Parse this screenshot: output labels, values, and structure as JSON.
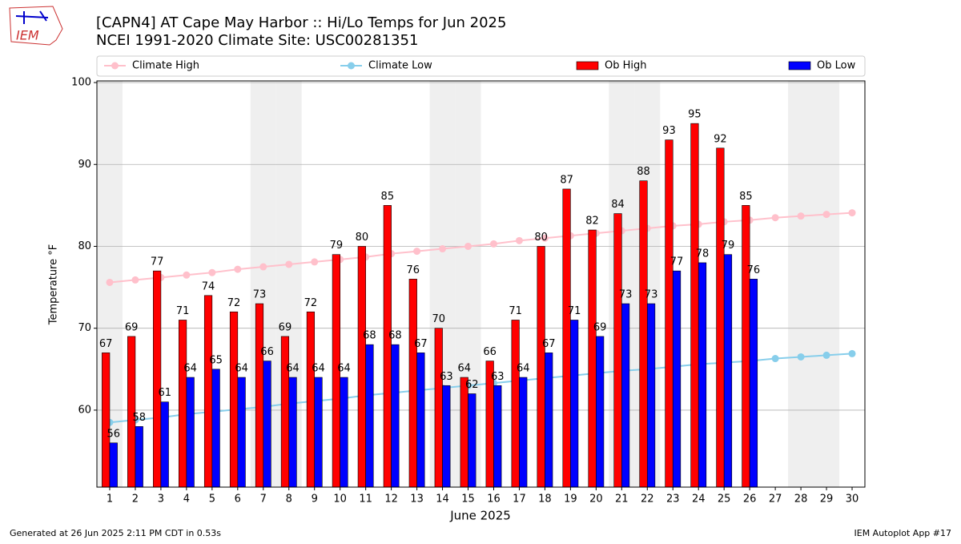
{
  "logo_text": "IEM",
  "footer_left": "Generated at 26 Jun 2025 2:11 PM CDT in 0.53s",
  "footer_right": "IEM Autoplot App #17",
  "chart_data": {
    "type": "bar",
    "title": "[CAPN4] AT Cape May Harbor :: Hi/Lo Temps for Jun 2025",
    "subtitle": "NCEI 1991-2020 Climate Site: USC00281351",
    "xlabel": "June 2025",
    "ylabel": "Temperature °F",
    "x": [
      1,
      2,
      3,
      4,
      5,
      6,
      7,
      8,
      9,
      10,
      11,
      12,
      13,
      14,
      15,
      16,
      17,
      18,
      19,
      20,
      21,
      22,
      23,
      24,
      25,
      26,
      27,
      28,
      29,
      30
    ],
    "xlim": [
      0.5,
      30.5
    ],
    "xticks": [
      1,
      2,
      3,
      4,
      5,
      6,
      7,
      8,
      9,
      10,
      11,
      12,
      13,
      14,
      15,
      16,
      17,
      18,
      19,
      20,
      21,
      22,
      23,
      24,
      25,
      26,
      27,
      28,
      29,
      30
    ],
    "ylim": [
      50.6,
      100.2
    ],
    "yticks": [
      60,
      70,
      80,
      90,
      100
    ],
    "grid": true,
    "shaded_days": [
      1,
      7,
      8,
      14,
      15,
      21,
      22,
      28,
      29
    ],
    "shade_color": "#efefef",
    "legend": "top",
    "series": [
      {
        "name": "Climate High",
        "style": "line",
        "color": "#ffc0cb",
        "values": [
          75.6,
          75.9,
          76.2,
          76.5,
          76.8,
          77.2,
          77.5,
          77.8,
          78.1,
          78.4,
          78.7,
          79.1,
          79.4,
          79.7,
          80.0,
          80.3,
          80.7,
          81.0,
          81.3,
          81.6,
          81.9,
          82.2,
          82.5,
          82.7,
          83.0,
          83.2,
          83.5,
          83.7,
          83.9,
          84.1
        ]
      },
      {
        "name": "Climate Low",
        "style": "line",
        "color": "#87ceeb",
        "values": [
          58.5,
          58.8,
          59.1,
          59.5,
          59.8,
          60.1,
          60.4,
          60.8,
          61.1,
          61.4,
          61.8,
          62.1,
          62.4,
          62.7,
          63.0,
          63.3,
          63.6,
          63.9,
          64.2,
          64.5,
          64.8,
          65.0,
          65.3,
          65.6,
          65.8,
          66.0,
          66.3,
          66.5,
          66.7,
          66.9
        ]
      },
      {
        "name": "Ob High",
        "style": "bar",
        "color": "#ff0000",
        "values": [
          67,
          69,
          77,
          71,
          74,
          72,
          73,
          69,
          72,
          79,
          80,
          85,
          76,
          70,
          64,
          66,
          71,
          80,
          87,
          82,
          84,
          88,
          93,
          95,
          92,
          85,
          null,
          null,
          null,
          null
        ]
      },
      {
        "name": "Ob Low",
        "style": "bar",
        "color": "#0000ff",
        "values": [
          56,
          58,
          61,
          64,
          65,
          64,
          66,
          64,
          64,
          64,
          68,
          68,
          67,
          63,
          62,
          63,
          64,
          67,
          71,
          69,
          73,
          73,
          77,
          78,
          79,
          76,
          null,
          null,
          null,
          null
        ]
      }
    ]
  }
}
